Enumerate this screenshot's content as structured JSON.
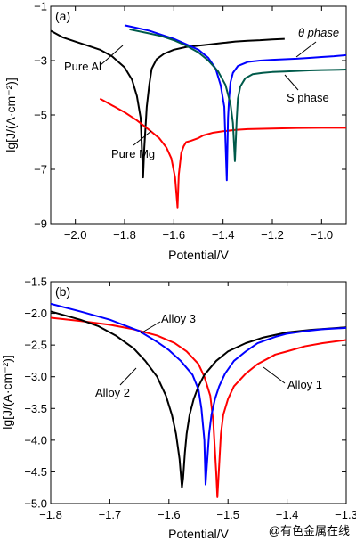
{
  "watermark": "@有色金属在线",
  "chart_data": [
    {
      "type": "line",
      "panel_label": "(a)",
      "xlabel": "Potential/V",
      "ylabel": "lg[J/(A·cm⁻²)]",
      "xlim": [
        -2.1,
        -0.9
      ],
      "ylim": [
        -9,
        -1
      ],
      "x_ticks": [
        -2.0,
        -1.8,
        -1.6,
        -1.4,
        -1.2,
        -1.0
      ],
      "x_tick_labels": [
        "−2.0",
        "−1.8",
        "−1.6",
        "−1.4",
        "−1.2",
        "−1.0"
      ],
      "y_ticks": [
        -9,
        -7,
        -5,
        -3,
        -1
      ],
      "y_tick_labels": [
        "−9",
        "−7",
        "−5",
        "−3",
        "−1"
      ],
      "series": [
        {
          "name": "Pure Al",
          "color": "#000000",
          "x": [
            -2.1,
            -2.05,
            -2.0,
            -1.95,
            -1.9,
            -1.85,
            -1.8,
            -1.77,
            -1.75,
            -1.735,
            -1.725,
            -1.72,
            -1.71,
            -1.7,
            -1.69,
            -1.67,
            -1.64,
            -1.6,
            -1.55,
            -1.5,
            -1.45,
            -1.4,
            -1.35,
            -1.3,
            -1.25,
            -1.2,
            -1.15
          ],
          "y": [
            -1.9,
            -2.15,
            -2.3,
            -2.45,
            -2.6,
            -2.85,
            -3.25,
            -3.7,
            -4.3,
            -5.1,
            -7.3,
            -6.2,
            -4.7,
            -3.9,
            -3.3,
            -2.95,
            -2.75,
            -2.6,
            -2.5,
            -2.45,
            -2.4,
            -2.35,
            -2.3,
            -2.27,
            -2.25,
            -2.22,
            -2.2
          ]
        },
        {
          "name": "Pure Mg",
          "color": "#ff0000",
          "x": [
            -1.9,
            -1.88,
            -1.85,
            -1.8,
            -1.75,
            -1.7,
            -1.66,
            -1.63,
            -1.61,
            -1.595,
            -1.585,
            -1.58,
            -1.57,
            -1.56,
            -1.55,
            -1.53,
            -1.5,
            -1.48,
            -1.46,
            -1.44,
            -1.4,
            -1.35,
            -1.3,
            -1.2,
            -1.1,
            -1.0,
            -0.9
          ],
          "y": [
            -4.4,
            -4.5,
            -4.65,
            -4.9,
            -5.2,
            -5.55,
            -5.85,
            -6.2,
            -6.6,
            -7.3,
            -8.4,
            -7.2,
            -6.4,
            -6.15,
            -6.0,
            -5.95,
            -5.85,
            -5.75,
            -5.7,
            -5.65,
            -5.6,
            -5.55,
            -5.52,
            -5.5,
            -5.48,
            -5.47,
            -5.47
          ]
        },
        {
          "name": "θ phase",
          "color": "#0000ff",
          "x": [
            -1.8,
            -1.75,
            -1.7,
            -1.65,
            -1.6,
            -1.55,
            -1.5,
            -1.46,
            -1.43,
            -1.41,
            -1.395,
            -1.385,
            -1.38,
            -1.375,
            -1.37,
            -1.36,
            -1.34,
            -1.3,
            -1.25,
            -1.2,
            -1.15,
            -1.1,
            -1.05,
            -1.0,
            -0.95,
            -0.9
          ],
          "y": [
            -1.7,
            -1.8,
            -1.9,
            -2.05,
            -2.2,
            -2.4,
            -2.6,
            -2.9,
            -3.3,
            -3.9,
            -4.7,
            -7.4,
            -5.1,
            -4.3,
            -3.8,
            -3.45,
            -3.2,
            -3.05,
            -3.0,
            -2.97,
            -2.95,
            -2.93,
            -2.9,
            -2.87,
            -2.84,
            -2.8
          ]
        },
        {
          "name": "S phase",
          "color": "#005a4a",
          "x": [
            -1.78,
            -1.7,
            -1.65,
            -1.6,
            -1.55,
            -1.5,
            -1.46,
            -1.42,
            -1.39,
            -1.37,
            -1.36,
            -1.352,
            -1.345,
            -1.34,
            -1.33,
            -1.31,
            -1.28,
            -1.24,
            -1.2,
            -1.15,
            -1.1,
            -1.05,
            -1.0,
            -0.95,
            -0.9
          ],
          "y": [
            -1.85,
            -2.0,
            -2.1,
            -2.25,
            -2.45,
            -2.7,
            -3.0,
            -3.4,
            -3.9,
            -4.6,
            -5.3,
            -6.7,
            -5.2,
            -4.4,
            -3.95,
            -3.65,
            -3.5,
            -3.45,
            -3.42,
            -3.4,
            -3.38,
            -3.36,
            -3.35,
            -3.34,
            -3.33
          ]
        }
      ],
      "annotations": [
        "Pure Al",
        "θ phase",
        "S phase",
        "Pure Mg"
      ]
    },
    {
      "type": "line",
      "panel_label": "(b)",
      "xlabel": "Potential/V",
      "ylabel": "lg[J/(A·cm⁻²)]",
      "xlim": [
        -1.8,
        -1.3
      ],
      "ylim": [
        -5.0,
        -1.5
      ],
      "x_ticks": [
        -1.8,
        -1.7,
        -1.6,
        -1.5,
        -1.4,
        -1.3
      ],
      "x_tick_labels": [
        "−1.8",
        "−1.7",
        "−1.6",
        "−1.5",
        "−1.4",
        "−1.3"
      ],
      "y_ticks": [
        -5.0,
        -4.5,
        -4.0,
        -3.5,
        -3.0,
        -2.5,
        -2.0,
        -1.5
      ],
      "y_tick_labels": [
        "−5.0",
        "−4.5",
        "−4.0",
        "−3.5",
        "−3.0",
        "−2.5",
        "−2.0",
        "−1.5"
      ],
      "series": [
        {
          "name": "Alloy 1",
          "color": "#ff0000",
          "x": [
            -1.8,
            -1.75,
            -1.7,
            -1.66,
            -1.62,
            -1.59,
            -1.57,
            -1.55,
            -1.54,
            -1.53,
            -1.525,
            -1.52,
            -1.518,
            -1.515,
            -1.512,
            -1.508,
            -1.5,
            -1.49,
            -1.47,
            -1.45,
            -1.42,
            -1.4,
            -1.37,
            -1.34,
            -1.3
          ],
          "y": [
            -2.07,
            -2.12,
            -2.18,
            -2.25,
            -2.35,
            -2.47,
            -2.6,
            -2.8,
            -3.0,
            -3.3,
            -3.7,
            -4.5,
            -4.9,
            -4.4,
            -3.9,
            -3.6,
            -3.35,
            -3.15,
            -2.95,
            -2.8,
            -2.65,
            -2.6,
            -2.52,
            -2.47,
            -2.42
          ]
        },
        {
          "name": "Alloy 2",
          "color": "#000000",
          "x": [
            -1.8,
            -1.75,
            -1.72,
            -1.69,
            -1.66,
            -1.64,
            -1.62,
            -1.605,
            -1.595,
            -1.588,
            -1.582,
            -1.578,
            -1.576,
            -1.573,
            -1.57,
            -1.565,
            -1.558,
            -1.55,
            -1.54,
            -1.52,
            -1.5,
            -1.47,
            -1.44,
            -1.4,
            -1.36,
            -1.3
          ],
          "y": [
            -1.97,
            -2.1,
            -2.2,
            -2.35,
            -2.55,
            -2.75,
            -3.0,
            -3.3,
            -3.6,
            -3.9,
            -4.3,
            -4.75,
            -4.6,
            -4.2,
            -3.9,
            -3.6,
            -3.35,
            -3.15,
            -2.97,
            -2.75,
            -2.6,
            -2.47,
            -2.38,
            -2.3,
            -2.26,
            -2.22
          ]
        },
        {
          "name": "Alloy 3",
          "color": "#0000ff",
          "x": [
            -1.8,
            -1.75,
            -1.7,
            -1.65,
            -1.62,
            -1.6,
            -1.58,
            -1.56,
            -1.55,
            -1.545,
            -1.54,
            -1.538,
            -1.535,
            -1.532,
            -1.528,
            -1.522,
            -1.515,
            -1.505,
            -1.49,
            -1.47,
            -1.45,
            -1.42,
            -1.4,
            -1.37,
            -1.34,
            -1.3
          ],
          "y": [
            -1.85,
            -1.97,
            -2.1,
            -2.28,
            -2.45,
            -2.58,
            -2.75,
            -2.97,
            -3.2,
            -3.5,
            -4.0,
            -4.7,
            -4.3,
            -3.9,
            -3.6,
            -3.35,
            -3.15,
            -2.95,
            -2.75,
            -2.6,
            -2.47,
            -2.37,
            -2.32,
            -2.28,
            -2.25,
            -2.23
          ]
        }
      ],
      "annotations": [
        "Alloy 3",
        "Alloy 2",
        "Alloy 1"
      ]
    }
  ]
}
